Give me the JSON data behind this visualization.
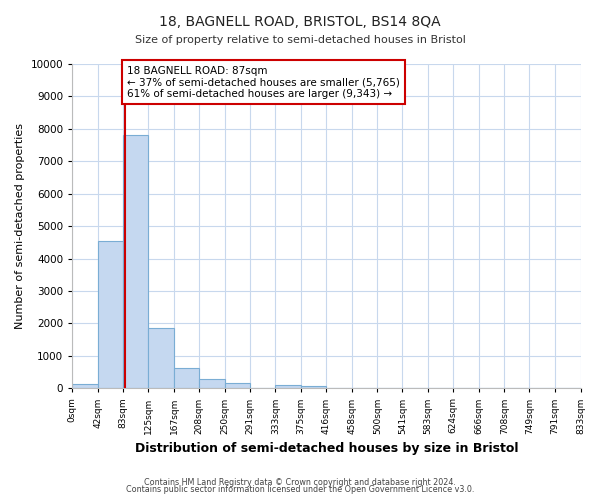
{
  "title": "18, BAGNELL ROAD, BRISTOL, BS14 8QA",
  "subtitle": "Size of property relative to semi-detached houses in Bristol",
  "xlabel": "Distribution of semi-detached houses by size in Bristol",
  "ylabel": "Number of semi-detached properties",
  "bar_color": "#c5d8f0",
  "bar_edge_color": "#7aadd4",
  "background_color": "#ffffff",
  "grid_color": "#c8d8ed",
  "bin_edges": [
    0,
    42,
    83,
    125,
    167,
    208,
    250,
    291,
    333,
    375,
    416,
    458,
    500,
    541,
    583,
    624,
    666,
    708,
    749,
    791,
    833
  ],
  "bin_labels": [
    "0sqm",
    "42sqm",
    "83sqm",
    "125sqm",
    "167sqm",
    "208sqm",
    "250sqm",
    "291sqm",
    "333sqm",
    "375sqm",
    "416sqm",
    "458sqm",
    "500sqm",
    "541sqm",
    "583sqm",
    "624sqm",
    "666sqm",
    "708sqm",
    "749sqm",
    "791sqm",
    "833sqm"
  ],
  "counts": [
    120,
    4550,
    7800,
    1860,
    620,
    290,
    155,
    0,
    100,
    85,
    0,
    0,
    0,
    0,
    0,
    0,
    0,
    0,
    0,
    0
  ],
  "property_size": 87,
  "property_label": "18 BAGNELL ROAD: 87sqm",
  "pct_smaller": 37,
  "n_smaller": 5765,
  "pct_larger": 61,
  "n_larger": 9343,
  "red_line_color": "#cc0000",
  "annotation_box_color": "#ffffff",
  "annotation_box_edge": "#cc0000",
  "ylim": [
    0,
    10000
  ],
  "yticks": [
    0,
    1000,
    2000,
    3000,
    4000,
    5000,
    6000,
    7000,
    8000,
    9000,
    10000
  ],
  "footer1": "Contains HM Land Registry data © Crown copyright and database right 2024.",
  "footer2": "Contains public sector information licensed under the Open Government Licence v3.0."
}
